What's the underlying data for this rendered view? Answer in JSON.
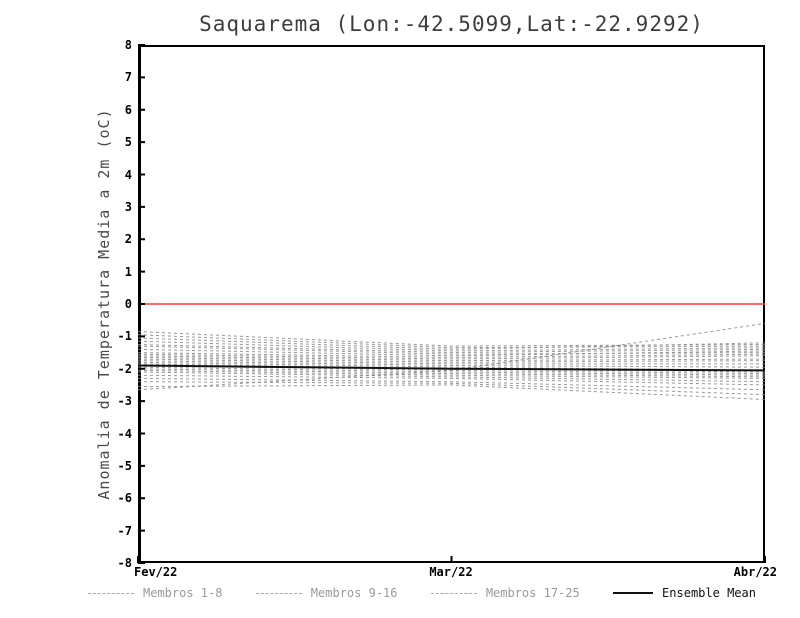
{
  "chart_data": {
    "type": "line",
    "title": "Saquarema (Lon:-42.5099,Lat:-22.9292)",
    "ylabel": "Anomalia de Temperatura Media a 2m (oC)",
    "ylim": [
      -8,
      8
    ],
    "ytick_step": 1,
    "x_categories": [
      "Fev/22",
      "Mar/22",
      "Abr/22"
    ],
    "x_positions": [
      0,
      0.5,
      1
    ],
    "grid": false,
    "zero_line": {
      "value": 0,
      "color": "#ef3b33"
    },
    "colors": {
      "member_line": "#868686",
      "mean_line": "#111111",
      "axis": "#000000",
      "title": "#3d3d3d",
      "legend_member_text": "#9a9a9a",
      "legend_sample_dash": "#aaaaaa"
    },
    "members": [
      [
        -0.85,
        -1.3,
        -1.25
      ],
      [
        -0.95,
        -1.35,
        -1.3
      ],
      [
        -1.05,
        -1.4,
        -1.2
      ],
      [
        -1.15,
        -1.45,
        -1.35
      ],
      [
        -1.25,
        -1.5,
        -1.4
      ],
      [
        -1.3,
        -1.55,
        -1.5
      ],
      [
        -1.4,
        -1.6,
        -1.45
      ],
      [
        -1.5,
        -1.65,
        -1.55
      ],
      [
        -1.55,
        -1.7,
        -1.6
      ],
      [
        -1.6,
        -1.75,
        -1.7
      ],
      [
        -1.65,
        -1.8,
        -1.75
      ],
      [
        -1.7,
        -1.85,
        -1.85
      ],
      [
        -1.75,
        -1.9,
        -1.95
      ],
      [
        -1.8,
        -1.95,
        -2.05
      ],
      [
        -1.85,
        -2.0,
        -2.1
      ],
      [
        -1.9,
        -2.05,
        -2.15
      ],
      [
        -1.95,
        -2.1,
        -2.2
      ],
      [
        -2.0,
        -2.15,
        -2.25
      ],
      [
        -2.05,
        -2.2,
        -2.3
      ],
      [
        -2.1,
        -2.25,
        -2.4
      ],
      [
        -2.2,
        -2.3,
        -2.5
      ],
      [
        -2.3,
        -2.4,
        -2.65
      ],
      [
        -2.4,
        -2.45,
        -2.8
      ],
      [
        -2.55,
        -2.5,
        -2.95
      ],
      [
        -2.65,
        -2.05,
        -0.6
      ]
    ],
    "ensemble_mean": [
      -1.9,
      -2.0,
      -2.05
    ],
    "legend": [
      {
        "label": "Membros 1-8",
        "style": "dashed",
        "color": "#aaaaaa",
        "text_color": "#9a9a9a"
      },
      {
        "label": "Membros 9-16",
        "style": "dashed",
        "color": "#aaaaaa",
        "text_color": "#9a9a9a"
      },
      {
        "label": "Membros 17-25",
        "style": "dashed",
        "color": "#aaaaaa",
        "text_color": "#9a9a9a"
      },
      {
        "label": "Ensemble Mean",
        "style": "solid",
        "color": "#111111",
        "text_color": "#111111"
      }
    ]
  }
}
